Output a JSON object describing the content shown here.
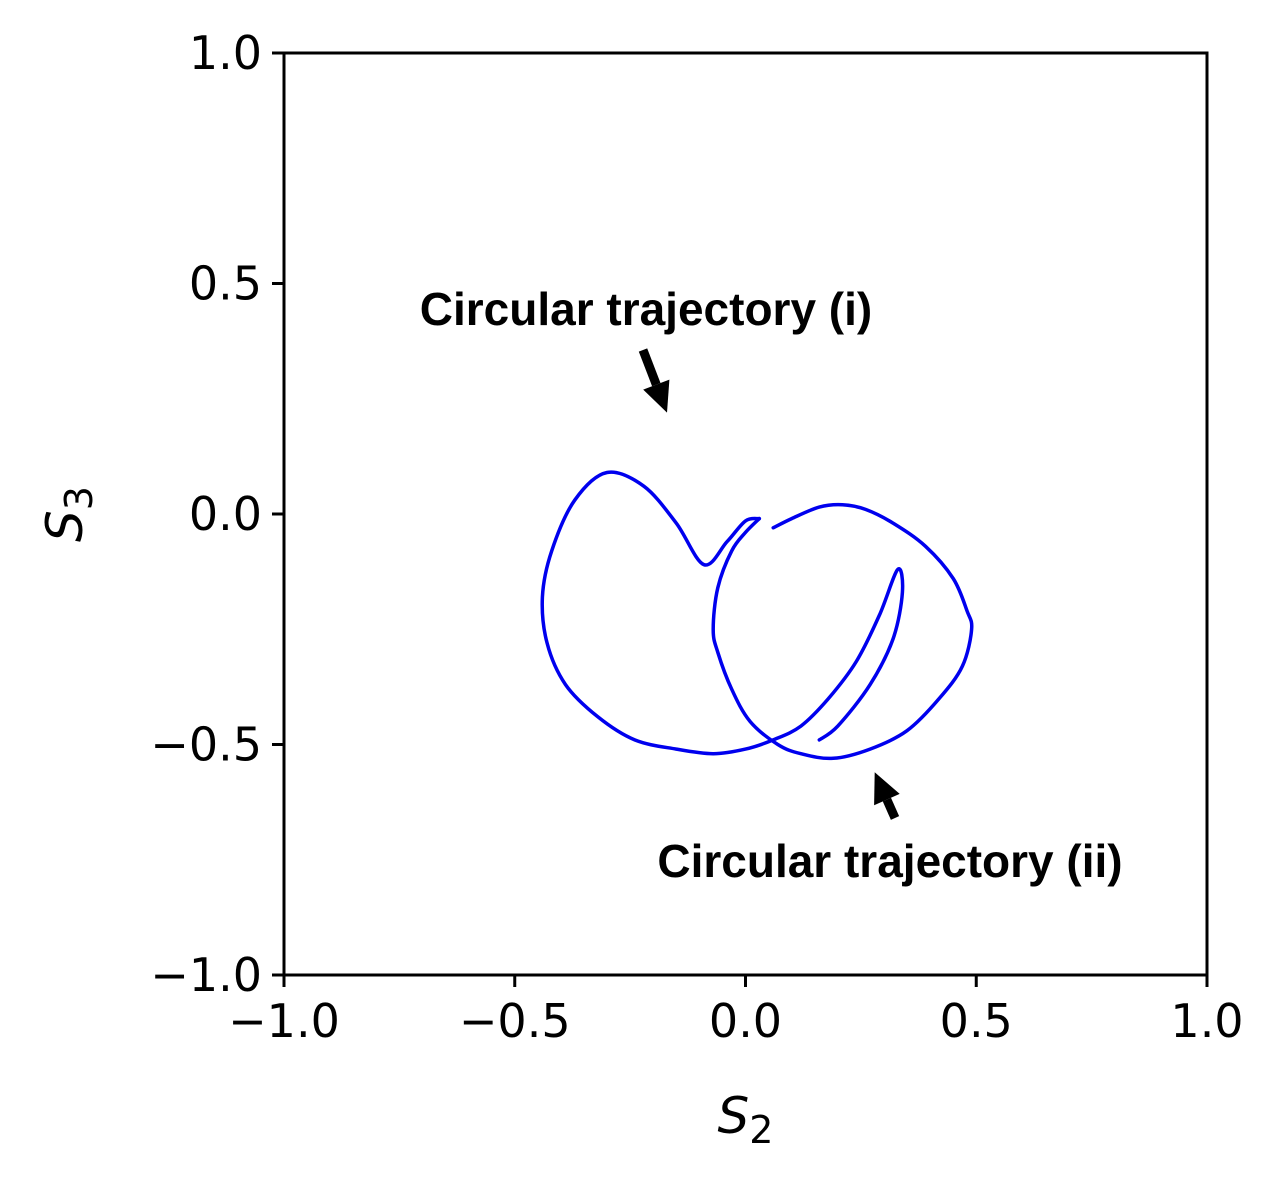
{
  "chart_data": {
    "type": "scatter",
    "title": "",
    "xlabel": {
      "base": "S",
      "sub": "2"
    },
    "ylabel": {
      "base": "S",
      "sub": "3"
    },
    "xlim": [
      -1.0,
      1.0
    ],
    "ylim": [
      -1.0,
      1.0
    ],
    "x_ticks": [
      -1.0,
      -0.5,
      0.0,
      0.5,
      1.0
    ],
    "y_ticks": [
      -1.0,
      -0.5,
      0.0,
      0.5,
      1.0
    ],
    "x_tick_labels": [
      "−1.0",
      "−0.5",
      "0.0",
      "0.5",
      "1.0"
    ],
    "y_tick_labels": [
      "−1.0",
      "−0.5",
      "0.0",
      "0.5",
      "1.0"
    ],
    "grid": false,
    "line_color": "#0000ee",
    "series": [
      {
        "id": "trajectory-i",
        "x": [
          0.03,
          0.0,
          -0.04,
          -0.09,
          -0.15,
          -0.22,
          -0.3,
          -0.37,
          -0.42,
          -0.44,
          -0.43,
          -0.39,
          -0.32,
          -0.24,
          -0.15,
          -0.07,
          0.0,
          0.06,
          0.12,
          0.18,
          0.24,
          0.29,
          0.33,
          0.34,
          0.32,
          0.27,
          0.2,
          0.16
        ],
        "y": [
          -0.01,
          -0.015,
          -0.06,
          -0.11,
          -0.02,
          0.06,
          0.09,
          0.03,
          -0.08,
          -0.18,
          -0.28,
          -0.37,
          -0.44,
          -0.49,
          -0.51,
          -0.52,
          -0.51,
          -0.49,
          -0.46,
          -0.4,
          -0.32,
          -0.22,
          -0.12,
          -0.17,
          -0.27,
          -0.37,
          -0.46,
          -0.49
        ]
      },
      {
        "id": "trajectory-ii",
        "x": [
          0.06,
          0.1,
          0.16,
          0.21,
          0.26,
          0.32,
          0.39,
          0.45,
          0.48,
          0.49,
          0.47,
          0.42,
          0.35,
          0.27,
          0.19,
          0.12,
          0.07,
          0.01,
          -0.03,
          -0.06,
          -0.07,
          -0.06,
          -0.03,
          0.0,
          0.03
        ],
        "y": [
          -0.03,
          -0.01,
          0.015,
          0.02,
          0.01,
          -0.02,
          -0.07,
          -0.14,
          -0.21,
          -0.25,
          -0.33,
          -0.4,
          -0.47,
          -0.51,
          -0.53,
          -0.52,
          -0.5,
          -0.45,
          -0.38,
          -0.3,
          -0.25,
          -0.16,
          -0.08,
          -0.04,
          -0.01
        ]
      }
    ],
    "annotations": [
      {
        "text": "Circular trajectory (i)",
        "target": [
          -0.17,
          0.22
        ]
      },
      {
        "text": "Circular trajectory (ii)",
        "target": [
          0.28,
          -0.56
        ]
      }
    ]
  }
}
